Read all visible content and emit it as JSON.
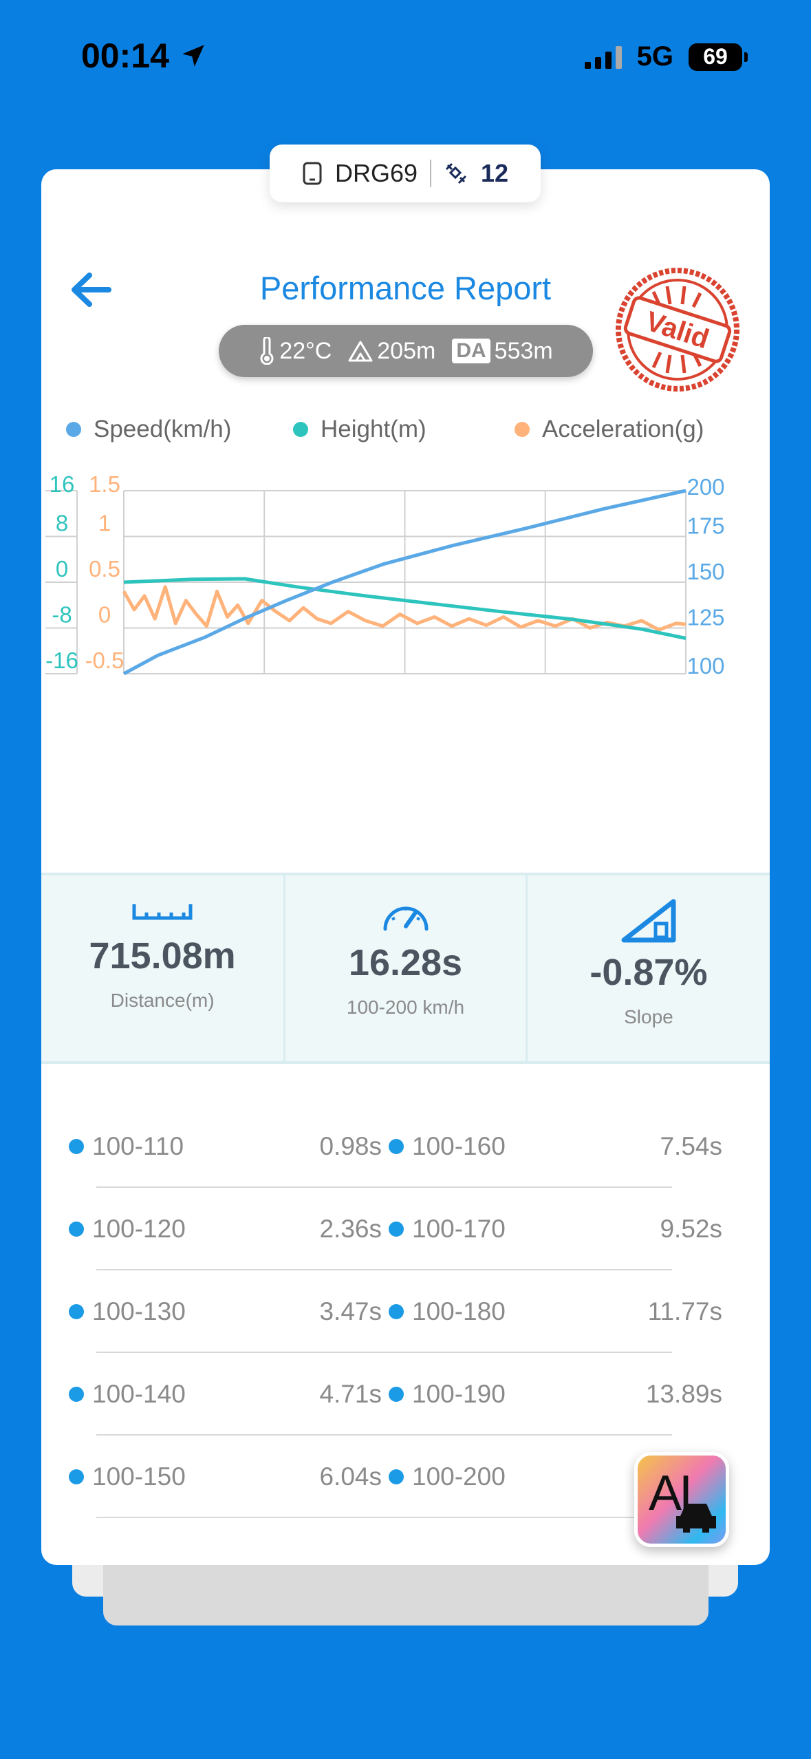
{
  "status_bar": {
    "time": "00:14",
    "network": "5G",
    "battery": "69"
  },
  "device": {
    "name": "DRG69",
    "satellites": "12"
  },
  "header": {
    "title": "Performance Report",
    "stamp_text": "Valid"
  },
  "conditions": {
    "temperature": "22°C",
    "altitude": "205m",
    "da_label": "DA",
    "density_altitude": "553m"
  },
  "legend": [
    {
      "label": "Speed(km/h)",
      "color": "#5AA9E6"
    },
    {
      "label": "Height(m)",
      "color": "#2EC4BE"
    },
    {
      "label": "Acceleration(g)",
      "color": "#FFB27A"
    }
  ],
  "chart_data": {
    "type": "line",
    "x": {
      "range": [
        0,
        16.28
      ],
      "labels_shown": false
    },
    "grid": true,
    "axes": {
      "speed": {
        "side": "right",
        "ylim": [
          100,
          200
        ],
        "ticks": [
          "200",
          "175",
          "150",
          "125",
          "100"
        ]
      },
      "height": {
        "side": "left-outer",
        "ylim": [
          -16,
          16
        ],
        "ticks": [
          "16",
          "8",
          "0",
          "-8",
          "-16"
        ]
      },
      "acceleration": {
        "side": "left-inner",
        "ylim": [
          -0.5,
          1.5
        ],
        "ticks": [
          "1.5",
          "1",
          "0.5",
          "0",
          "-0.5"
        ]
      }
    },
    "series": [
      {
        "name": "Speed(km/h)",
        "axis": "speed",
        "color": "#5AA9E6",
        "x": [
          0,
          0.98,
          2.36,
          3.47,
          4.71,
          6.04,
          7.54,
          9.52,
          11.77,
          13.89,
          16.28
        ],
        "y": [
          100,
          110,
          120,
          130,
          140,
          150,
          160,
          170,
          180,
          190,
          200
        ]
      },
      {
        "name": "Height(m)",
        "axis": "height",
        "color": "#2EC4BE",
        "x": [
          0,
          2,
          3.5,
          5,
          7,
          9,
          11,
          13,
          15,
          16.28
        ],
        "y": [
          0,
          0.5,
          0.6,
          -0.8,
          -2.4,
          -3.8,
          -5.2,
          -6.5,
          -8.2,
          -9.8
        ]
      },
      {
        "name": "Acceleration(g)",
        "axis": "acceleration",
        "color": "#FFB27A",
        "x": [
          0,
          0.3,
          0.6,
          0.9,
          1.2,
          1.5,
          1.8,
          2.1,
          2.4,
          2.7,
          3.0,
          3.3,
          3.6,
          4.0,
          4.4,
          4.8,
          5.2,
          5.6,
          6.0,
          6.5,
          7.0,
          7.5,
          8.0,
          8.5,
          9.0,
          9.5,
          10.0,
          10.5,
          11.0,
          11.5,
          12.0,
          12.5,
          13.0,
          13.5,
          14.0,
          14.5,
          15.0,
          15.5,
          16.0,
          16.28
        ],
        "y": [
          0.4,
          0.2,
          0.35,
          0.1,
          0.45,
          0.05,
          0.3,
          0.15,
          0.02,
          0.4,
          0.12,
          0.25,
          0.05,
          0.3,
          0.18,
          0.08,
          0.22,
          0.1,
          0.05,
          0.18,
          0.08,
          0.02,
          0.15,
          0.05,
          0.12,
          0.02,
          0.1,
          0.03,
          0.12,
          0.01,
          0.08,
          0.02,
          0.1,
          0.0,
          0.06,
          0.02,
          0.08,
          -0.02,
          0.05,
          0.04
        ]
      }
    ]
  },
  "stats": [
    {
      "value": "715.08m",
      "label": "Distance(m)",
      "icon": "ruler-icon"
    },
    {
      "value": "16.28s",
      "label": "100-200 km/h",
      "icon": "speedometer-icon"
    },
    {
      "value": "-0.87%",
      "label": "Slope",
      "icon": "slope-icon"
    }
  ],
  "splits": [
    {
      "left": {
        "range": "100-110",
        "time": "0.98s"
      },
      "right": {
        "range": "100-160",
        "time": "7.54s"
      }
    },
    {
      "left": {
        "range": "100-120",
        "time": "2.36s"
      },
      "right": {
        "range": "100-170",
        "time": "9.52s"
      }
    },
    {
      "left": {
        "range": "100-130",
        "time": "3.47s"
      },
      "right": {
        "range": "100-180",
        "time": "11.77s"
      }
    },
    {
      "left": {
        "range": "100-140",
        "time": "4.71s"
      },
      "right": {
        "range": "100-190",
        "time": "13.89s"
      }
    },
    {
      "left": {
        "range": "100-150",
        "time": "6.04s"
      },
      "right": {
        "range": "100-200",
        "time": ""
      }
    }
  ],
  "ai_button": {
    "label": "AI"
  }
}
